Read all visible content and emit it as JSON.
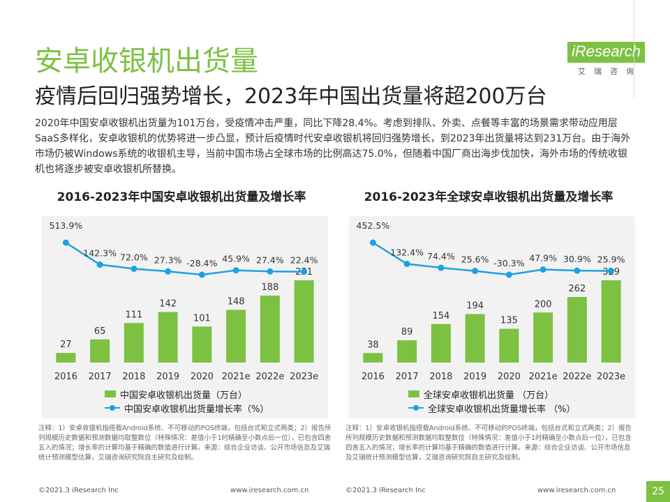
{
  "header": {
    "title": "安卓收银机出货量",
    "subtitle": "疫情后回归强势增长，2023年中国出货量将超200万台",
    "logo_text": "iResearch",
    "logo_sub": "艾瑞咨询"
  },
  "summary": "2020年中国安卓收银机出货量为101万台，受疫情冲击严重，同比下降28.4%。考虑到排队、外卖、点餐等丰富的场景需求带动应用层SaaS多样化，安卓收银机的优势将进一步凸显，预计后疫情时代安卓收银机将回归强势增长，到2023年出货量将达到231万台。由于海外市场仍被Windows系统的收银机主导，当前中国市场占全球市场的比例高达75.0%，但随着中国厂商出海步伐加快，海外市场的传统收银机也将逐步被安卓收银机所替换。",
  "colors": {
    "accent": "#7cc142",
    "line": "#1ba1e2"
  },
  "chart_data": [
    {
      "type": "bar+line",
      "title": "2016-2023年中国安卓收银机出货量及增长率",
      "categories": [
        "2016",
        "2017",
        "2018",
        "2019",
        "2020",
        "2021e",
        "2022e",
        "2023e"
      ],
      "series": [
        {
          "name": "中国安卓收银机出货量（万台）",
          "type": "bar",
          "values": [
            27,
            65,
            111,
            142,
            101,
            148,
            188,
            231
          ]
        },
        {
          "name": "中国安卓收银机出货量增长率（%）",
          "type": "line",
          "values": [
            513.9,
            142.3,
            72.0,
            27.3,
            -28.4,
            45.9,
            27.4,
            22.4
          ],
          "labels": [
            "513.9%",
            "142.3%",
            "72.0%",
            "27.3%",
            "-28.4%",
            "45.9%",
            "27.4%",
            "22.4%"
          ]
        }
      ],
      "legend": "bottom"
    },
    {
      "type": "bar+line",
      "title": "2016-2023年全球安卓收银机出货量及增长率",
      "categories": [
        "2016",
        "2017",
        "2018",
        "2019",
        "2020",
        "2021e",
        "2022e",
        "2023e"
      ],
      "series": [
        {
          "name": "全球安卓收银机出货量 （万台）",
          "type": "bar",
          "values": [
            38,
            89,
            154,
            194,
            135,
            200,
            262,
            329
          ]
        },
        {
          "name": "全球安卓收银机出货量增长率 （%）",
          "type": "line",
          "values": [
            452.5,
            132.4,
            74.4,
            25.6,
            -30.3,
            47.9,
            30.9,
            25.9
          ],
          "labels": [
            "452.5%",
            "132.4%",
            "74.4%",
            "25.6%",
            "-30.3%",
            "47.9%",
            "30.9%",
            "25.9%"
          ]
        }
      ],
      "legend": "bottom"
    }
  ],
  "notes": [
    "注释：1）安卓收银机指搭载Android系统、不可移动的POS终端，包括台式和立式两类；2）报告所列规模历史数据和预测数据均取整数位（特殊情况：差值小于1时精确至小数点后一位），已包含四舍五入的情况；增长率的计算均基于精确的数值进行计算。来源：综合企业访谈、公开市场信息及艾瑞统计预测模型估算，艾瑞咨询研究院自主研究及绘制。",
    "注释：1）安卓收银机指搭载Android系统、不可移动的POS终端，包括台式和立式两类；2）报告所列规模历史数据和预测数据均取整数位（特殊情况：差值小于1时精确至小数点后一位），已包含四舍五入的情况；增长率的计算均基于精确的数值进行计算。来源：综合企业访谈、公开市场信息及艾瑞统计预测模型估算，艾瑞咨询研究院自主研究及绘制。"
  ],
  "footer": {
    "copyright_left": "©2021.3 iResearch Inc",
    "url_left": "www.iresearch.com.cn",
    "copyright_right": "©2021.3 iResearch Inc",
    "url_right": "www.iresearch.com.cn",
    "page": "25"
  }
}
